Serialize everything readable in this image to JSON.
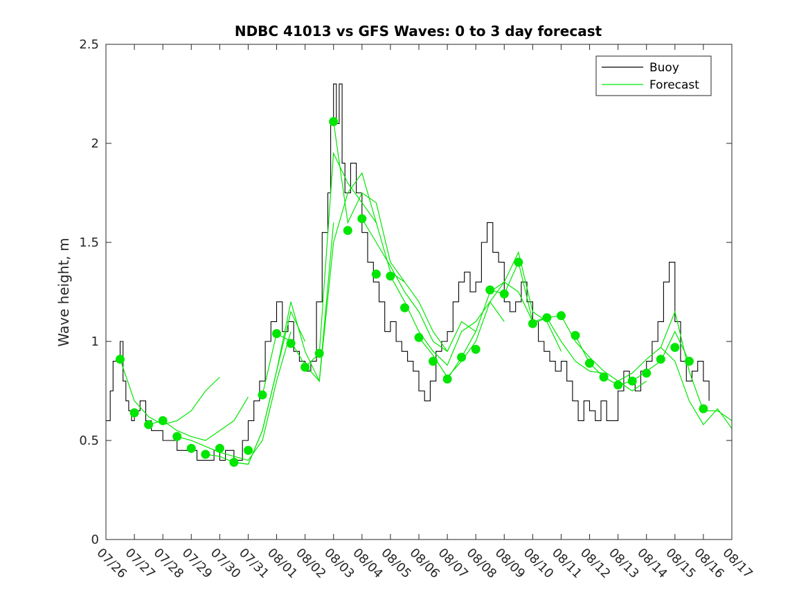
{
  "chart_data": {
    "type": "line",
    "title": "NDBC 41013 vs GFS Waves: 0 to 3 day forecast",
    "xlabel": "",
    "ylabel": "Wave height, m",
    "xlim": [
      0,
      22
    ],
    "ylim": [
      0,
      2.5
    ],
    "x_tick_labels": [
      "07/26",
      "07/27",
      "07/28",
      "07/29",
      "07/30",
      "07/31",
      "08/01",
      "08/02",
      "08/03",
      "08/04",
      "08/05",
      "08/06",
      "08/07",
      "08/08",
      "08/09",
      "08/10",
      "08/11",
      "08/12",
      "08/13",
      "08/14",
      "08/15",
      "08/16",
      "08/17"
    ],
    "y_ticks": [
      0,
      0.5,
      1,
      1.5,
      2,
      2.5
    ],
    "y_tick_labels": [
      "0",
      "0.5",
      "1",
      "1.5",
      "2",
      "2.5"
    ],
    "legend": [
      {
        "label": "Buoy",
        "color": "#000000"
      },
      {
        "label": "Forecast",
        "color": "#00e600"
      }
    ],
    "legend_location": "top-right",
    "series": [
      {
        "name": "Buoy",
        "color": "#000000",
        "x": [
          0,
          0.15,
          0.25,
          0.35,
          0.5,
          0.6,
          0.7,
          0.8,
          0.9,
          1.0,
          1.2,
          1.4,
          1.6,
          1.8,
          2.0,
          2.3,
          2.5,
          2.7,
          3.0,
          3.2,
          3.5,
          3.8,
          4.0,
          4.2,
          4.5,
          4.8,
          5.0,
          5.2,
          5.4,
          5.6,
          5.8,
          6.0,
          6.2,
          6.4,
          6.6,
          6.8,
          7.0,
          7.2,
          7.4,
          7.6,
          7.8,
          7.9,
          8.0,
          8.1,
          8.2,
          8.3,
          8.4,
          8.6,
          8.8,
          9.0,
          9.2,
          9.4,
          9.6,
          9.8,
          10.0,
          10.2,
          10.4,
          10.6,
          10.8,
          11.0,
          11.2,
          11.4,
          11.6,
          11.8,
          12.0,
          12.2,
          12.4,
          12.6,
          12.8,
          13.0,
          13.2,
          13.4,
          13.6,
          13.8,
          14.0,
          14.2,
          14.4,
          14.6,
          14.8,
          15.0,
          15.2,
          15.4,
          15.6,
          15.8,
          16.0,
          16.2,
          16.4,
          16.6,
          16.8,
          17.0,
          17.2,
          17.4,
          17.6,
          17.8,
          18.0,
          18.2,
          18.4,
          18.6,
          18.8,
          19.0,
          19.2,
          19.4,
          19.6,
          19.8,
          20.0,
          20.2,
          20.4,
          20.6,
          20.8,
          21.0,
          21.2
        ],
        "y": [
          0.6,
          0.75,
          0.9,
          0.9,
          1.0,
          0.8,
          0.7,
          0.65,
          0.6,
          0.65,
          0.7,
          0.6,
          0.55,
          0.55,
          0.5,
          0.5,
          0.45,
          0.45,
          0.45,
          0.4,
          0.4,
          0.45,
          0.4,
          0.45,
          0.4,
          0.5,
          0.6,
          0.7,
          0.8,
          1.0,
          1.1,
          1.2,
          1.05,
          1.1,
          0.95,
          0.9,
          0.85,
          0.9,
          1.2,
          1.55,
          1.75,
          2.1,
          2.3,
          2.1,
          2.3,
          1.9,
          1.75,
          1.9,
          1.75,
          1.55,
          1.4,
          1.3,
          1.2,
          1.05,
          1.1,
          1.0,
          0.95,
          0.9,
          0.85,
          0.75,
          0.7,
          0.8,
          0.95,
          1.0,
          1.05,
          1.2,
          1.3,
          1.35,
          1.25,
          1.3,
          1.5,
          1.6,
          1.45,
          1.4,
          1.2,
          1.15,
          1.2,
          1.3,
          1.2,
          1.1,
          1.0,
          0.95,
          0.9,
          0.85,
          0.9,
          0.8,
          0.7,
          0.6,
          0.7,
          0.65,
          0.6,
          0.7,
          0.6,
          0.6,
          0.75,
          0.85,
          0.8,
          0.75,
          0.85,
          0.9,
          1.0,
          1.1,
          1.3,
          1.4,
          1.1,
          0.9,
          0.8,
          0.85,
          0.9,
          0.8,
          0.7
        ]
      }
    ],
    "forecast_lines": [
      {
        "x": [
          0.5,
          1.0,
          1.5,
          2.0,
          2.5,
          3.0,
          3.5,
          4.0
        ],
        "y": [
          0.91,
          0.7,
          0.62,
          0.58,
          0.6,
          0.65,
          0.75,
          0.82
        ]
      },
      {
        "x": [
          1.5,
          2.0,
          2.5,
          3.0,
          3.5,
          4.0,
          4.5,
          5.0
        ],
        "y": [
          0.58,
          0.6,
          0.55,
          0.52,
          0.5,
          0.55,
          0.6,
          0.72
        ]
      },
      {
        "x": [
          2.5,
          3.0,
          3.5,
          4.0,
          4.5,
          5.0,
          5.5,
          6.0,
          6.5
        ],
        "y": [
          0.52,
          0.5,
          0.47,
          0.44,
          0.42,
          0.4,
          0.5,
          0.8,
          1.05
        ]
      },
      {
        "x": [
          3.5,
          4.0,
          4.5,
          5.0,
          5.5,
          6.0,
          6.5,
          7.0
        ],
        "y": [
          0.43,
          0.42,
          0.39,
          0.38,
          0.55,
          0.85,
          1.15,
          1.0
        ]
      },
      {
        "x": [
          4.5,
          5.0,
          5.5,
          6.0,
          6.5,
          7.0,
          7.5,
          8.0
        ],
        "y": [
          0.39,
          0.38,
          0.55,
          0.85,
          1.2,
          0.95,
          0.8,
          1.6
        ]
      },
      {
        "x": [
          5.5,
          6.0,
          6.5,
          7.0,
          7.5,
          8.0,
          8.5,
          9.0,
          9.5
        ],
        "y": [
          0.73,
          1.04,
          1.0,
          0.88,
          0.8,
          1.5,
          1.75,
          1.85,
          1.6
        ]
      },
      {
        "x": [
          7.0,
          7.5,
          8.0,
          8.5,
          9.0,
          9.5,
          10.0,
          10.5
        ],
        "y": [
          0.87,
          0.94,
          1.95,
          1.8,
          1.7,
          1.6,
          1.35,
          1.3
        ]
      },
      {
        "x": [
          8.0,
          8.5,
          9.0,
          9.5,
          10.0,
          10.5,
          11.0,
          11.5,
          12.0
        ],
        "y": [
          2.11,
          1.6,
          1.75,
          1.7,
          1.4,
          1.3,
          1.2,
          1.05,
          0.95
        ]
      },
      {
        "x": [
          9.0,
          9.5,
          10.0,
          10.5,
          11.0,
          11.5,
          12.0,
          12.5,
          13.0
        ],
        "y": [
          1.62,
          1.5,
          1.38,
          1.25,
          1.15,
          1.0,
          0.95,
          1.1,
          1.05
        ]
      },
      {
        "x": [
          10.0,
          10.5,
          11.0,
          11.5,
          12.0,
          12.5,
          13.0,
          13.5,
          14.0
        ],
        "y": [
          1.33,
          1.2,
          1.05,
          0.95,
          0.88,
          1.05,
          1.1,
          1.2,
          1.1
        ]
      },
      {
        "x": [
          11.0,
          11.5,
          12.0,
          12.5,
          13.0,
          13.5,
          14.0,
          14.5,
          15.0
        ],
        "y": [
          1.02,
          0.93,
          0.82,
          0.9,
          1.0,
          1.2,
          1.3,
          1.25,
          1.1
        ]
      },
      {
        "x": [
          12.0,
          12.5,
          13.0,
          13.5,
          14.0,
          14.5,
          15.0,
          15.5,
          16.0
        ],
        "y": [
          0.81,
          0.92,
          1.05,
          1.25,
          1.3,
          1.45,
          1.15,
          1.1,
          0.95
        ]
      },
      {
        "x": [
          13.5,
          14.0,
          14.5,
          15.0,
          15.5,
          16.0,
          16.5,
          17.0,
          17.5
        ],
        "y": [
          1.26,
          1.24,
          1.4,
          1.1,
          1.12,
          1.0,
          0.9,
          0.85,
          0.84
        ]
      },
      {
        "x": [
          15.0,
          15.5,
          16.0,
          16.5,
          17.0,
          17.5,
          18.0,
          18.5,
          19.0
        ],
        "y": [
          1.09,
          1.12,
          1.13,
          1.0,
          0.92,
          0.85,
          0.8,
          0.75,
          0.8
        ]
      },
      {
        "x": [
          16.5,
          17.0,
          17.5,
          18.0,
          18.5,
          19.0,
          19.5,
          20.0,
          20.5
        ],
        "y": [
          1.03,
          0.89,
          0.82,
          0.78,
          0.8,
          0.85,
          0.9,
          1.05,
          0.9
        ]
      },
      {
        "x": [
          18.0,
          18.5,
          19.0,
          19.5,
          20.0,
          20.5,
          21.0,
          21.5,
          22.0
        ],
        "y": [
          0.8,
          0.84,
          0.91,
          0.97,
          1.15,
          0.85,
          0.65,
          0.65,
          0.6
        ]
      },
      {
        "x": [
          19.5,
          20.0,
          20.5,
          21.0,
          21.5,
          22.0
        ],
        "y": [
          0.97,
          0.9,
          0.7,
          0.58,
          0.66,
          0.56
        ]
      }
    ],
    "forecast_points": {
      "x": [
        0.5,
        1.0,
        1.5,
        2.0,
        2.5,
        3.0,
        3.5,
        4.0,
        4.5,
        5.0,
        5.5,
        6.0,
        6.5,
        7.0,
        7.5,
        8.0,
        8.5,
        9.0,
        9.5,
        10.0,
        10.5,
        11.0,
        11.5,
        12.0,
        12.5,
        13.0,
        13.5,
        14.0,
        14.5,
        15.0,
        15.5,
        16.0,
        16.5,
        17.0,
        17.5,
        18.0,
        18.5,
        19.0,
        19.5,
        20.0,
        20.5,
        21.0
      ],
      "y": [
        0.91,
        0.64,
        0.58,
        0.6,
        0.52,
        0.46,
        0.43,
        0.46,
        0.39,
        0.45,
        0.73,
        1.04,
        0.99,
        0.87,
        0.94,
        2.11,
        1.56,
        1.62,
        1.34,
        1.33,
        1.17,
        1.02,
        0.9,
        0.81,
        0.92,
        0.96,
        1.26,
        1.24,
        1.4,
        1.09,
        1.12,
        1.13,
        1.03,
        0.89,
        0.82,
        0.78,
        0.8,
        0.84,
        0.91,
        0.97,
        0.9,
        0.66
      ]
    }
  }
}
